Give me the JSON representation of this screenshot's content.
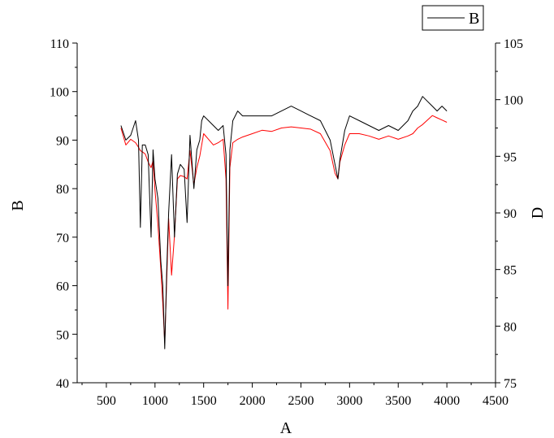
{
  "chart_data": {
    "type": "line",
    "xlabel": "A",
    "ylabel_left": "B",
    "ylabel_right": "D",
    "xlim": [
      200,
      4500
    ],
    "xticks": [
      500,
      1000,
      1500,
      2000,
      2500,
      3000,
      3500,
      4000,
      4500
    ],
    "ylim_left": [
      40,
      110
    ],
    "yticks_left": [
      40,
      50,
      60,
      70,
      80,
      90,
      100,
      110
    ],
    "ylim_right": [
      75,
      105
    ],
    "yticks_right": [
      75,
      80,
      85,
      90,
      95,
      100,
      105
    ],
    "legend": {
      "position": "top-right",
      "entries": [
        "B"
      ]
    },
    "grid": false,
    "series": [
      {
        "name": "B",
        "axis": "left",
        "color": "#000000",
        "x": [
          650,
          700,
          750,
          800,
          830,
          850,
          870,
          900,
          930,
          960,
          980,
          1000,
          1030,
          1060,
          1080,
          1100,
          1120,
          1140,
          1170,
          1200,
          1230,
          1260,
          1300,
          1330,
          1360,
          1400,
          1430,
          1460,
          1480,
          1500,
          1550,
          1600,
          1650,
          1700,
          1730,
          1750,
          1770,
          1800,
          1850,
          1900,
          2000,
          2100,
          2200,
          2300,
          2400,
          2500,
          2600,
          2700,
          2800,
          2850,
          2880,
          2900,
          2950,
          3000,
          3100,
          3200,
          3300,
          3400,
          3500,
          3600,
          3650,
          3700,
          3750,
          3800,
          3850,
          3900,
          3950,
          4000
        ],
        "y": [
          93,
          90,
          91,
          94,
          90,
          72,
          89,
          89,
          87,
          70,
          88,
          82,
          78,
          65,
          60,
          47,
          63,
          75,
          87,
          70,
          83,
          85,
          84,
          73,
          91,
          80,
          88,
          90,
          94,
          95,
          94,
          93,
          92,
          93,
          87,
          60,
          88,
          94,
          96,
          95,
          95,
          95,
          95,
          96,
          97,
          96,
          95,
          94,
          90,
          85,
          82,
          86,
          92,
          95,
          94,
          93,
          92,
          93,
          92,
          94,
          96,
          97,
          99,
          98,
          97,
          96,
          97,
          96
        ]
      },
      {
        "name": "",
        "axis": "right",
        "color": "#ff0000",
        "x": [
          650,
          700,
          750,
          800,
          830,
          850,
          870,
          900,
          930,
          960,
          980,
          1000,
          1030,
          1060,
          1080,
          1100,
          1120,
          1140,
          1170,
          1200,
          1230,
          1260,
          1300,
          1330,
          1360,
          1400,
          1430,
          1460,
          1480,
          1500,
          1550,
          1600,
          1650,
          1700,
          1730,
          1750,
          1770,
          1800,
          1850,
          1900,
          2000,
          2100,
          2200,
          2300,
          2400,
          2500,
          2600,
          2700,
          2800,
          2850,
          2880,
          2900,
          2950,
          3000,
          3100,
          3200,
          3300,
          3400,
          3500,
          3600,
          3650,
          3700,
          3750,
          3800,
          3850,
          3900,
          3950,
          4000
        ],
        "y": [
          97.5,
          96,
          96.5,
          96.2,
          95.8,
          95.5,
          95.4,
          95.2,
          94.5,
          94.0,
          94.6,
          92.0,
          89.0,
          85.0,
          82.0,
          78.5,
          84.0,
          89.5,
          84.5,
          88.0,
          93.0,
          93.3,
          93.2,
          93.0,
          95.5,
          92.5,
          94.0,
          95.0,
          96.0,
          97.0,
          96.5,
          96.0,
          96.2,
          96.5,
          93.0,
          81.5,
          94.0,
          96.2,
          96.5,
          96.7,
          97.0,
          97.3,
          97.2,
          97.5,
          97.6,
          97.5,
          97.4,
          97.0,
          95.5,
          93.5,
          93.0,
          94.5,
          96.0,
          97.0,
          97.0,
          96.8,
          96.5,
          96.8,
          96.5,
          96.8,
          97.0,
          97.5,
          97.8,
          98.2,
          98.6,
          98.4,
          98.2,
          98.0
        ]
      }
    ]
  }
}
